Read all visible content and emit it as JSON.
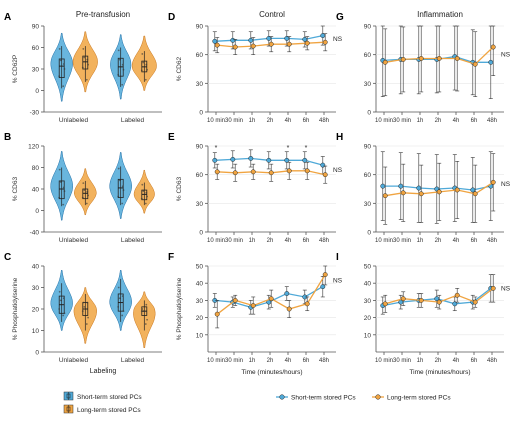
{
  "colors": {
    "short": "#4fa9d8",
    "long": "#f0a441",
    "shortDark": "#1f6fa8",
    "longDark": "#c8741a",
    "axis": "#555555",
    "grid": "#e6e6e6"
  },
  "chart_data": [
    {
      "id": "A",
      "type": "violin",
      "title": "Pre-transfusion",
      "ylabel": "% CD62P",
      "xlabel": "",
      "categories": [
        "Unlabeled",
        "Labeled"
      ],
      "ylim": [
        -30,
        90
      ],
      "yticks": [
        -30,
        0,
        30,
        60,
        90
      ],
      "series": [
        {
          "name": "Short-term stored PCs",
          "groups": [
            {
              "min": 3,
              "q1": 18,
              "median": 34,
              "q3": 44,
              "max": 62,
              "vmin": -15,
              "vmax": 80,
              "mode": 40,
              "width": 0.85
            },
            {
              "min": 5,
              "q1": 20,
              "median": 33,
              "q3": 45,
              "max": 60,
              "vmin": -12,
              "vmax": 78,
              "mode": 38,
              "width": 0.8
            }
          ]
        },
        {
          "name": "Long-term stored PCs",
          "groups": [
            {
              "min": 12,
              "q1": 30,
              "median": 40,
              "q3": 48,
              "max": 62,
              "vmin": -2,
              "vmax": 82,
              "mode": 40,
              "width": 0.95
            },
            {
              "min": 12,
              "q1": 26,
              "median": 33,
              "q3": 41,
              "max": 55,
              "vmin": 0,
              "vmax": 76,
              "mode": 33,
              "width": 0.95
            }
          ]
        }
      ]
    },
    {
      "id": "B",
      "type": "violin",
      "title": "",
      "ylabel": "% CD63",
      "xlabel": "",
      "categories": [
        "Unlabeled",
        "Labeled"
      ],
      "ylim": [
        -40,
        120
      ],
      "yticks": [
        -40,
        0,
        40,
        80,
        120
      ],
      "series": [
        {
          "name": "Short-term stored PCs",
          "groups": [
            {
              "min": 8,
              "q1": 22,
              "median": 40,
              "q3": 55,
              "max": 80,
              "vmin": -18,
              "vmax": 110,
              "mode": 45,
              "width": 0.85
            },
            {
              "min": 10,
              "q1": 24,
              "median": 42,
              "q3": 58,
              "max": 82,
              "vmin": -15,
              "vmax": 108,
              "mode": 45,
              "width": 0.85
            }
          ]
        },
        {
          "name": "Long-term stored PCs",
          "groups": [
            {
              "min": 10,
              "q1": 22,
              "median": 32,
              "q3": 40,
              "max": 55,
              "vmin": -8,
              "vmax": 78,
              "mode": 32,
              "width": 0.85
            },
            {
              "min": 10,
              "q1": 20,
              "median": 30,
              "q3": 38,
              "max": 52,
              "vmin": -5,
              "vmax": 75,
              "mode": 28,
              "width": 0.8
            }
          ]
        }
      ]
    },
    {
      "id": "C",
      "type": "violin",
      "title": "",
      "ylabel": "% Phosphatidylserine",
      "xlabel": "Labeling",
      "categories": [
        "Unlabeled",
        "Labeled"
      ],
      "ylim": [
        0,
        40
      ],
      "yticks": [
        0,
        10,
        20,
        30,
        40
      ],
      "series": [
        {
          "name": "Short-term stored PCs",
          "groups": [
            {
              "min": 14,
              "q1": 18,
              "median": 22,
              "q3": 26,
              "max": 32,
              "vmin": 10,
              "vmax": 38,
              "mode": 22,
              "width": 0.85
            },
            {
              "min": 14,
              "q1": 19,
              "median": 23,
              "q3": 27,
              "max": 34,
              "vmin": 10,
              "vmax": 38,
              "mode": 23,
              "width": 0.85
            }
          ]
        },
        {
          "name": "Long-term stored PCs",
          "groups": [
            {
              "min": 10,
              "q1": 17,
              "median": 20,
              "q3": 23,
              "max": 27,
              "vmin": 4,
              "vmax": 30,
              "mode": 20,
              "width": 0.9
            },
            {
              "min": 10,
              "q1": 17,
              "median": 19,
              "q3": 21,
              "max": 24,
              "vmin": 2,
              "vmax": 28,
              "mode": 20,
              "width": 0.9
            }
          ]
        }
      ]
    },
    {
      "id": "D",
      "type": "line",
      "title": "Control",
      "ylabel": "% CD62",
      "xlabel": "",
      "x": [
        "10 min",
        "30 min",
        "1h",
        "2h",
        "4h",
        "6h",
        "48h"
      ],
      "ylim": [
        0,
        90
      ],
      "yticks": [
        0,
        30,
        60,
        90
      ],
      "note": "NS",
      "stars": [],
      "series": [
        {
          "name": "Short-term stored PCs",
          "values": [
            74,
            75,
            75,
            77,
            77,
            76,
            80
          ],
          "err": [
            10,
            9,
            9,
            8,
            8,
            8,
            10
          ]
        },
        {
          "name": "Long-term stored PCs",
          "values": [
            70,
            68,
            69,
            71,
            71,
            72,
            73
          ],
          "err": [
            8,
            8,
            9,
            8,
            8,
            7,
            9
          ]
        }
      ]
    },
    {
      "id": "E",
      "type": "line",
      "title": "",
      "ylabel": "% CD63",
      "xlabel": "",
      "x": [
        "10 min",
        "30 min",
        "1h",
        "2h",
        "4h",
        "6h",
        "48h"
      ],
      "ylim": [
        0,
        90
      ],
      "yticks": [
        0,
        30,
        60,
        90
      ],
      "note": "NS",
      "stars": [
        0,
        4,
        5
      ],
      "series": [
        {
          "name": "Short-term stored PCs",
          "values": [
            75,
            76,
            77,
            75,
            75,
            75,
            70
          ],
          "err": [
            8,
            9,
            9,
            9,
            9,
            9,
            9
          ]
        },
        {
          "name": "Long-term stored PCs",
          "values": [
            63,
            62,
            63,
            62,
            64,
            64,
            60
          ],
          "err": [
            8,
            9,
            8,
            9,
            9,
            9,
            9
          ]
        }
      ]
    },
    {
      "id": "F",
      "type": "line",
      "title": "",
      "ylabel": "% Phosphatidylserine",
      "xlabel": "Time (minutes/hours)",
      "x": [
        "10 min",
        "30 min",
        "1h",
        "2h",
        "4h",
        "6h",
        "48h"
      ],
      "ylim": [
        0,
        50
      ],
      "yticks": [
        10,
        20,
        30,
        40,
        50
      ],
      "note": "NS",
      "stars": [],
      "series": [
        {
          "name": "Short-term stored PCs",
          "values": [
            30,
            29,
            26,
            29,
            34,
            32,
            38
          ],
          "err": [
            4,
            3,
            4,
            4,
            4,
            4,
            6
          ]
        },
        {
          "name": "Long-term stored PCs",
          "values": [
            22,
            30,
            27,
            31,
            25,
            28,
            45
          ],
          "err": [
            8,
            3,
            5,
            5,
            5,
            4,
            6
          ]
        }
      ]
    },
    {
      "id": "G",
      "type": "line",
      "title": "Inflammation",
      "ylabel": "",
      "xlabel": "",
      "x": [
        "10 min",
        "30 min",
        "1h",
        "2h",
        "4h",
        "6h",
        "48h"
      ],
      "ylim": [
        0,
        90
      ],
      "yticks": [
        0,
        30,
        60,
        90
      ],
      "note": "NS",
      "stars": [],
      "series": [
        {
          "name": "Short-term stored PCs",
          "values": [
            54,
            55,
            55,
            55,
            58,
            52,
            52
          ],
          "err": [
            38,
            36,
            36,
            35,
            35,
            34,
            38
          ]
        },
        {
          "name": "Long-term stored PCs",
          "values": [
            52,
            55,
            56,
            56,
            56,
            50,
            68
          ],
          "err": [
            35,
            34,
            35,
            35,
            34,
            34,
            30
          ]
        }
      ]
    },
    {
      "id": "H",
      "type": "line",
      "title": "",
      "ylabel": "",
      "xlabel": "",
      "x": [
        "10 min",
        "30 min",
        "1h",
        "2h",
        "4h",
        "6h",
        "48h"
      ],
      "ylim": [
        0,
        90
      ],
      "yticks": [
        0,
        30,
        60,
        90
      ],
      "note": "NS",
      "stars": [],
      "series": [
        {
          "name": "Short-term stored PCs",
          "values": [
            48,
            48,
            46,
            45,
            46,
            44,
            48
          ],
          "err": [
            36,
            35,
            36,
            36,
            35,
            34,
            36
          ]
        },
        {
          "name": "Long-term stored PCs",
          "values": [
            38,
            41,
            40,
            42,
            44,
            40,
            52
          ],
          "err": [
            30,
            30,
            30,
            30,
            30,
            30,
            30
          ]
        }
      ]
    },
    {
      "id": "I",
      "type": "line",
      "title": "",
      "ylabel": "",
      "xlabel": "Time (minutes/hours)",
      "x": [
        "10 min",
        "30 min",
        "1h",
        "2h",
        "4h",
        "6h",
        "48h"
      ],
      "ylim": [
        0,
        50
      ],
      "yticks": [
        10,
        20,
        30,
        40,
        50
      ],
      "note": "NS",
      "stars": [],
      "series": [
        {
          "name": "Short-term stored PCs",
          "values": [
            27,
            29,
            30,
            31,
            28,
            29,
            37
          ],
          "err": [
            5,
            4,
            4,
            5,
            4,
            4,
            8
          ]
        },
        {
          "name": "Long-term stored PCs",
          "values": [
            28,
            31,
            30,
            29,
            33,
            29,
            37
          ],
          "err": [
            5,
            4,
            4,
            4,
            4,
            3,
            8
          ]
        }
      ]
    }
  ],
  "legend_violin": [
    {
      "label": "Short-term stored PCs",
      "key": "short"
    },
    {
      "label": "Long-term stored PCs",
      "key": "long"
    }
  ],
  "legend_line": [
    {
      "label": "Short-term stored PCs",
      "key": "short"
    },
    {
      "label": "Long-term stored PCs",
      "key": "long"
    }
  ]
}
